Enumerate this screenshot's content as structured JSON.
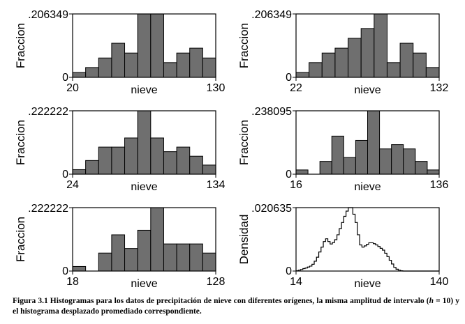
{
  "chart_data": [
    {
      "type": "bar",
      "ylabel": "Fraccion",
      "xlabel": "nieve",
      "ymax_label": ".206349",
      "ymin_label": "0",
      "xmin_label": "20",
      "xmax_label": "130",
      "xlim": [
        20,
        130
      ],
      "ylim": [
        0,
        0.206349
      ],
      "bin_width": 10,
      "first_bin_start": 20,
      "values": [
        0.016,
        0.032,
        0.063,
        0.111,
        0.079,
        0.206349,
        0.206349,
        0.048,
        0.079,
        0.095,
        0.063
      ]
    },
    {
      "type": "bar",
      "ylabel": "Fraccion",
      "xlabel": "nieve",
      "ymax_label": ".206349",
      "ymin_label": "0",
      "xmin_label": "22",
      "xmax_label": "132",
      "xlim": [
        22,
        132
      ],
      "ylim": [
        0,
        0.206349
      ],
      "bin_width": 10,
      "first_bin_start": 22,
      "values": [
        0.016,
        0.048,
        0.079,
        0.095,
        0.127,
        0.159,
        0.206349,
        0.048,
        0.111,
        0.079,
        0.032
      ]
    },
    {
      "type": "bar",
      "ylabel": "Fraccion",
      "xlabel": "nieve",
      "ymax_label": ".222222",
      "ymin_label": "0",
      "xmin_label": "24",
      "xmax_label": "134",
      "xlim": [
        24,
        134
      ],
      "ylim": [
        0,
        0.222222
      ],
      "bin_width": 10,
      "first_bin_start": 24,
      "values": [
        0.016,
        0.048,
        0.095,
        0.095,
        0.127,
        0.222222,
        0.127,
        0.079,
        0.095,
        0.063,
        0.032
      ]
    },
    {
      "type": "bar",
      "ylabel": "Fraccion",
      "xlabel": "nieve",
      "ymax_label": ".238095",
      "ymin_label": "0",
      "xmin_label": "16",
      "xmax_label": "136",
      "xlim": [
        16,
        136
      ],
      "ylim": [
        0,
        0.238095
      ],
      "bin_width": 10,
      "first_bin_start": 16,
      "values": [
        0.016,
        0,
        0.048,
        0.143,
        0.063,
        0.127,
        0.238095,
        0.095,
        0.111,
        0.095,
        0.048,
        0.016
      ]
    },
    {
      "type": "bar",
      "ylabel": "Fraccion",
      "xlabel": "nieve",
      "ymax_label": ".222222",
      "ymin_label": "0",
      "xmin_label": "18",
      "xmax_label": "128",
      "xlim": [
        18,
        128
      ],
      "ylim": [
        0,
        0.222222
      ],
      "bin_width": 10,
      "first_bin_start": 18,
      "values": [
        0.016,
        0,
        0.063,
        0.127,
        0.079,
        0.143,
        0.222222,
        0.095,
        0.095,
        0.095,
        0.063
      ]
    },
    {
      "type": "line",
      "ylabel": "Densidad",
      "xlabel": "nieve",
      "ymax_label": ".020635",
      "ymin_label": "0",
      "xmin_label": "14",
      "xmax_label": "140",
      "xlim": [
        14,
        140
      ],
      "ylim": [
        0,
        0.020635
      ],
      "x": [
        14,
        16,
        18,
        20,
        22,
        24,
        26,
        28,
        30,
        32,
        34,
        36,
        38,
        40,
        42,
        44,
        46,
        48,
        50,
        52,
        54,
        56,
        58,
        60,
        62,
        64,
        66,
        68,
        70,
        72,
        74,
        76,
        78,
        80,
        82,
        84,
        86,
        88,
        90,
        92,
        94,
        96,
        98,
        100,
        102,
        104,
        106,
        108,
        110,
        112,
        114,
        116,
        118,
        120,
        122,
        124,
        126,
        128,
        130,
        132,
        134,
        136,
        138
      ],
      "y": [
        0.0001,
        0.0003,
        0.0005,
        0.0008,
        0.001,
        0.0013,
        0.0016,
        0.0022,
        0.0032,
        0.0045,
        0.0062,
        0.0078,
        0.0096,
        0.0105,
        0.0096,
        0.0088,
        0.0093,
        0.0102,
        0.0118,
        0.0138,
        0.0158,
        0.0178,
        0.0195,
        0.020635,
        0.020635,
        0.0185,
        0.0158,
        0.0118,
        0.0085,
        0.0078,
        0.0082,
        0.0087,
        0.0092,
        0.0092,
        0.0089,
        0.0085,
        0.008,
        0.0074,
        0.0068,
        0.0058,
        0.0047,
        0.0035,
        0.0023,
        0.0012,
        0.0006,
        0.0003,
        0.0001,
        0,
        0,
        0,
        0,
        0,
        0,
        0,
        0,
        0,
        0,
        0,
        0,
        0,
        0,
        0,
        0
      ]
    }
  ],
  "caption": {
    "prefix": "Figura 3.1 Histogramas para los datos de precipitación de nieve con diferentes orígenes, la misma amplitud de intervalo (",
    "var": "h",
    "suffix": " = 10) y el histograma desplazado promediado correspondiente."
  }
}
